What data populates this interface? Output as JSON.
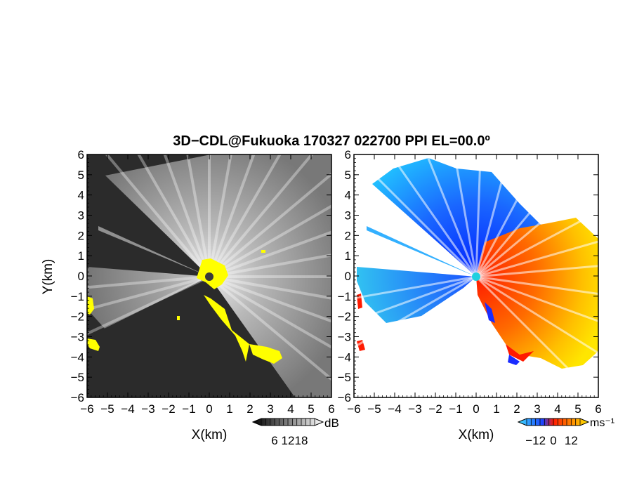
{
  "title": "3D−CDL@Fukuoka 170327 022700 PPI EL=00.0º",
  "chart_data": [
    {
      "type": "heatmap",
      "name": "reflectivity",
      "xlabel": "X(km)",
      "ylabel": "Y(km)",
      "xlim": [
        -6,
        6
      ],
      "ylim": [
        -6,
        6
      ],
      "xticks": [
        "−6",
        "−5",
        "−4",
        "−3",
        "−2",
        "−1",
        "0",
        "1",
        "2",
        "3",
        "4",
        "5",
        "6"
      ],
      "yticks": [
        "6",
        "5",
        "4",
        "3",
        "2",
        "1",
        "0",
        "−1",
        "−2",
        "−3",
        "−4",
        "−5",
        "−6"
      ],
      "colorbar": {
        "unit": "dB",
        "ticks": [
          "6",
          "12",
          "18"
        ],
        "range": [
          0,
          24
        ]
      },
      "colors": {
        "background": "#2a2a2a",
        "echo": "#d0d0d0",
        "flag": "#ffff00"
      }
    },
    {
      "type": "heatmap",
      "name": "doppler_velocity",
      "xlabel": "X(km)",
      "xlim": [
        -6,
        6
      ],
      "ylim": [
        -6,
        6
      ],
      "xticks": [
        "−6",
        "−5",
        "−4",
        "−3",
        "−2",
        "−1",
        "0",
        "1",
        "2",
        "3",
        "4",
        "5",
        "6"
      ],
      "yticks": [
        "6",
        "5",
        "4",
        "3",
        "2",
        "1",
        "0",
        "−1",
        "−2",
        "−3",
        "−4",
        "−5",
        "−6"
      ],
      "colorbar": {
        "unit": "ms⁻¹",
        "ticks": [
          "−12",
          "0",
          "12"
        ],
        "range": [
          -18,
          18
        ]
      },
      "colors": {
        "negative_far": "#00e5ff",
        "negative_near": "#1e3cff",
        "positive_near": "#ff1a00",
        "positive_far": "#ffe000"
      }
    }
  ]
}
